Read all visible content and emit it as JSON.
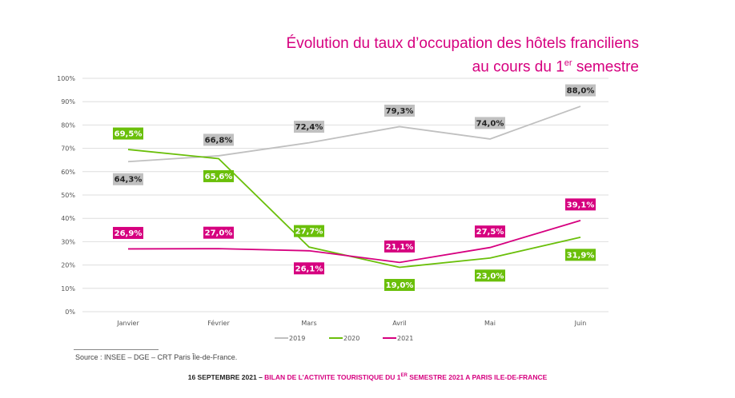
{
  "chart_data": {
    "type": "line",
    "title_line1": "Évolution du taux d’occupation des hôtels franciliens",
    "title_line2": "au cours du 1",
    "title_sup": "er",
    "title_line2_end": " semestre",
    "categories": [
      "Janvier",
      "Février",
      "Mars",
      "Avril",
      "Mai",
      "Juin"
    ],
    "ylim": [
      0,
      100
    ],
    "yticks": [
      "0%",
      "10%",
      "20%",
      "30%",
      "40%",
      "50%",
      "60%",
      "70%",
      "80%",
      "90%",
      "100%"
    ],
    "grid": true,
    "legend_position": "bottom",
    "series": [
      {
        "name": "2019",
        "color": "#c0c0c0",
        "values": [
          64.3,
          66.8,
          72.4,
          79.3,
          74.0,
          88.0
        ],
        "labels": [
          "64,3%",
          "66,8%",
          "72,4%",
          "79,3%",
          "74,0%",
          "88,0%"
        ],
        "label_text_color": "#222"
      },
      {
        "name": "2020",
        "color": "#6abf0a",
        "values": [
          69.5,
          65.6,
          27.7,
          19.0,
          23.0,
          31.9
        ],
        "labels": [
          "69,5%",
          "65,6%",
          "27,7%",
          "19,0%",
          "23,0%",
          "31,9%"
        ],
        "label_text_color": "#fff"
      },
      {
        "name": "2021",
        "color": "#d6007f",
        "values": [
          26.9,
          27.0,
          26.1,
          21.1,
          27.5,
          39.1
        ],
        "labels": [
          "26,9%",
          "27,0%",
          "26,1%",
          "21,1%",
          "27,5%",
          "39,1%"
        ],
        "label_text_color": "#fff"
      }
    ]
  },
  "source": "Source : INSEE – DGE – CRT Paris Île-de-France.",
  "footer": {
    "date": "16 SEPTEMBRE 2021 – ",
    "text_a": "BILAN DE L’ACTIVITE TOURISTIQUE DU 1",
    "sup": "ER",
    "text_b": " SEMESTRE 2021 A PARIS ILE-DE-FRANCE"
  }
}
